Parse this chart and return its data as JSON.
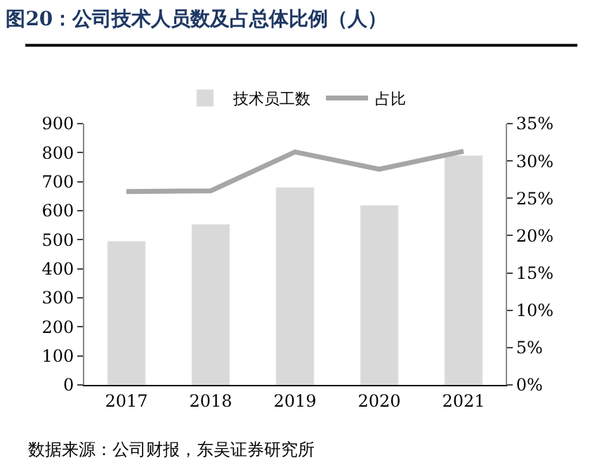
{
  "chart_data": {
    "type": "bar",
    "title": "图20：公司技术人员数及占总体比例（人）",
    "categories": [
      "2017",
      "2018",
      "2019",
      "2020",
      "2021"
    ],
    "series": [
      {
        "name": "技术员工数",
        "color": "#d9d9d9",
        "values": [
          495,
          553,
          680,
          618,
          790
        ]
      },
      {
        "name": "占比",
        "type": "line",
        "axis": "y2",
        "color": "#a6a6a6",
        "values": [
          25.9,
          26.0,
          31.2,
          28.9,
          31.3
        ]
      }
    ],
    "ylim": [
      0,
      900
    ],
    "yticks": [
      0,
      100,
      200,
      300,
      400,
      500,
      600,
      700,
      800,
      900
    ],
    "y2lim": [
      0,
      35
    ],
    "y2ticks": [
      {
        "value": 0,
        "label": "0%"
      },
      {
        "value": 5,
        "label": "5%"
      },
      {
        "value": 10,
        "label": "10%"
      },
      {
        "value": 15,
        "label": "15%"
      },
      {
        "value": 20,
        "label": "20%"
      },
      {
        "value": 25,
        "label": "25%"
      },
      {
        "value": 30,
        "label": "30%"
      },
      {
        "value": 35,
        "label": "35%"
      }
    ],
    "legend": "top",
    "marker": "none",
    "annotations": [
      "数据来源：公司财报，东吴证券研究所"
    ]
  }
}
